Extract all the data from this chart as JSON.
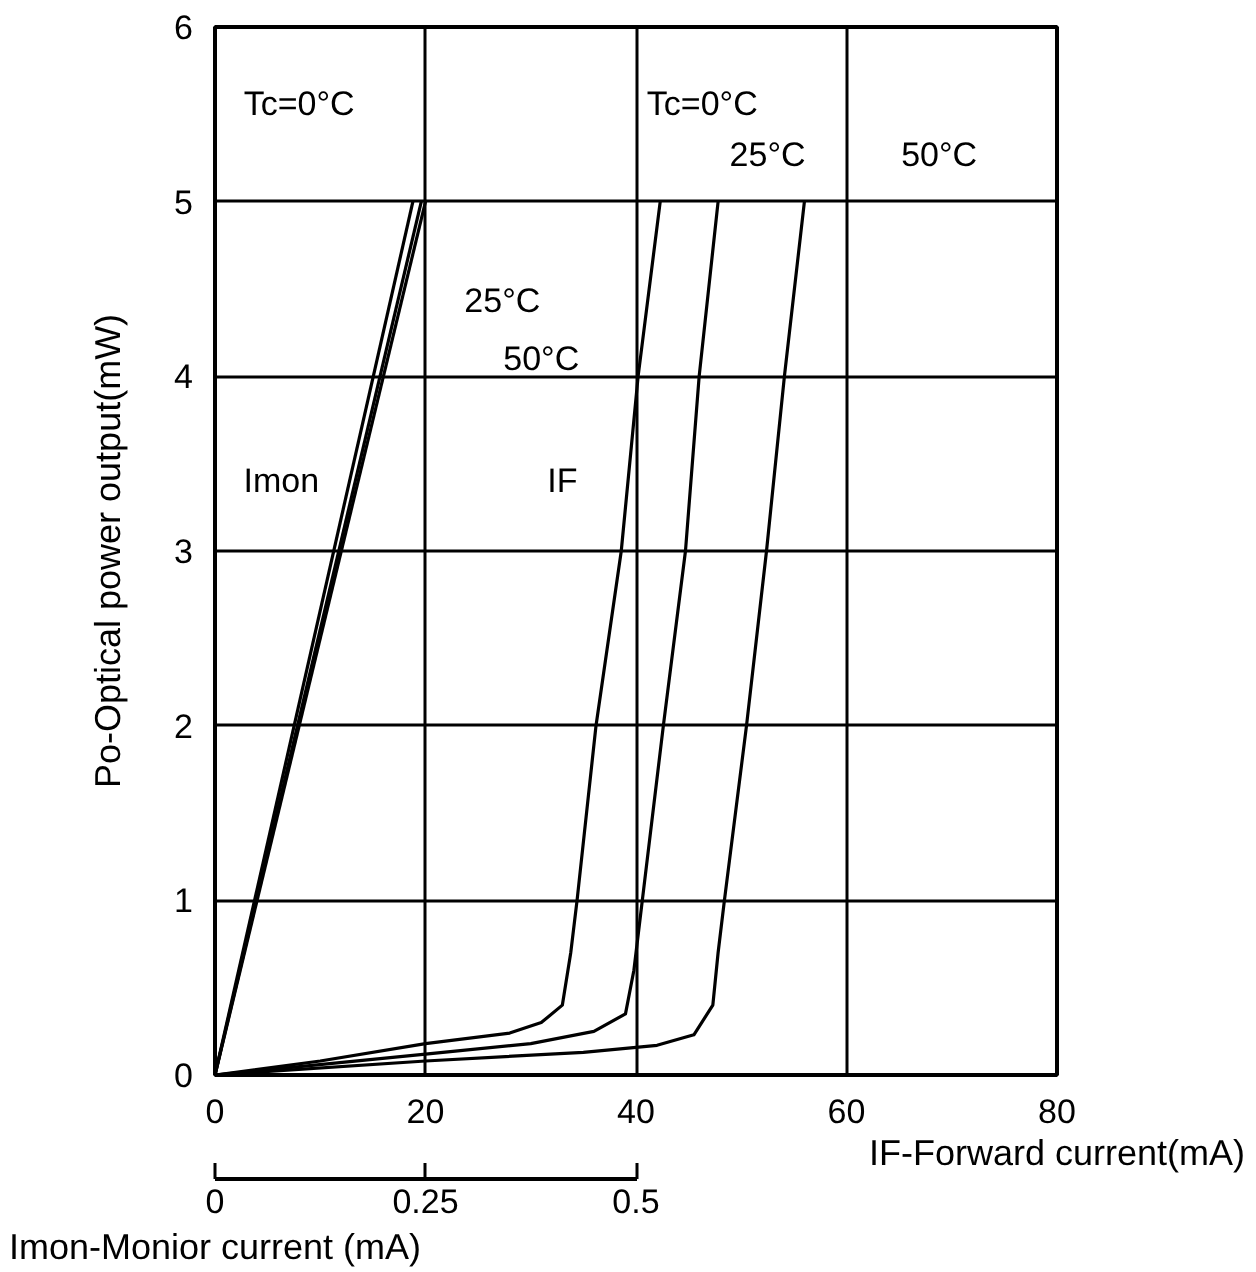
{
  "chart_data": {
    "type": "line",
    "xlabel": "IF-Forward current(mA)",
    "ylabel": "Po-Optical power output(mW)",
    "x2label": "Imon-Monior current (mA)",
    "xlim": [
      0,
      80
    ],
    "xticks": [
      0,
      20,
      40,
      60,
      80
    ],
    "ylim": [
      0,
      6
    ],
    "yticks": [
      0,
      1,
      2,
      3,
      4,
      5,
      6
    ],
    "x2lim": [
      0,
      1.0
    ],
    "x2ticks": [
      0,
      0.25,
      0.5
    ],
    "grid": true,
    "marker": "none",
    "line_style": "solid",
    "series": [
      {
        "color": "#000000",
        "axis": "x2",
        "x": [
          0,
          0.235
        ],
        "values": [
          0,
          5
        ]
      },
      {
        "color": "#000000",
        "axis": "x2",
        "x": [
          0,
          0.245
        ],
        "values": [
          0,
          5
        ]
      },
      {
        "color": "#000000",
        "axis": "x2",
        "x": [
          0,
          0.25
        ],
        "values": [
          0,
          5
        ]
      },
      {
        "color": "#000000",
        "x": [
          0,
          10,
          20,
          28,
          31,
          33,
          33.8,
          34.4,
          36.2,
          38.6,
          40.2,
          42.3
        ],
        "values": [
          0,
          0.08,
          0.18,
          0.24,
          0.3,
          0.4,
          0.7,
          1,
          2,
          3,
          4,
          5
        ]
      },
      {
        "color": "#000000",
        "x": [
          0,
          20,
          30,
          36,
          39,
          39.8,
          40.6,
          42.6,
          44.7,
          46,
          47.8
        ],
        "values": [
          0,
          0.12,
          0.18,
          0.25,
          0.35,
          0.6,
          1,
          2,
          3,
          4,
          5
        ]
      },
      {
        "color": "#000000",
        "x": [
          0,
          20,
          35,
          42,
          45.5,
          47.3,
          47.8,
          48.4,
          50.5,
          52.4,
          54.1,
          56
        ],
        "values": [
          0,
          0.08,
          0.13,
          0.17,
          0.23,
          0.4,
          0.7,
          1,
          2,
          3,
          4,
          5
        ]
      }
    ],
    "annotations": [
      "Tc=0°C",
      "25°C",
      "50°C",
      "Imon",
      "IF",
      "Tc=0°C",
      "25°C",
      "50°C"
    ]
  }
}
